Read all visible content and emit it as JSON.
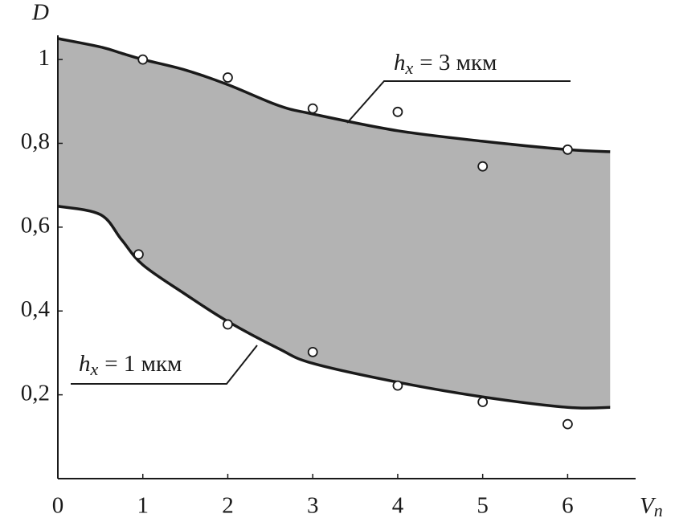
{
  "chart_data": {
    "type": "band",
    "y_label": "D",
    "x_label": "V",
    "x_label_sub": "п",
    "xlim": [
      0,
      6.8
    ],
    "ylim": [
      0,
      1.05
    ],
    "xticks": [
      0,
      1,
      2,
      3,
      4,
      5,
      6
    ],
    "yticks": [
      {
        "value": 0.2,
        "label": "0,2"
      },
      {
        "value": 0.4,
        "label": "0,4"
      },
      {
        "value": 0.6,
        "label": "0,6"
      },
      {
        "value": 0.8,
        "label": "0,8"
      },
      1
    ],
    "fill": "#b3b3b3",
    "line_color": "#1a1a1a",
    "curves": [
      {
        "x": [
          0,
          0.5,
          0.75,
          1,
          1.5,
          2,
          2.6,
          3,
          4,
          5,
          6,
          6.5
        ],
        "values": [
          1.05,
          1.03,
          1.015,
          1.0,
          0.975,
          0.94,
          0.89,
          0.87,
          0.83,
          0.805,
          0.785,
          0.78
        ]
      },
      {
        "x": [
          0,
          0.5,
          0.75,
          1,
          1.5,
          2,
          2.6,
          3,
          4,
          5,
          6,
          6.5
        ],
        "values": [
          0.65,
          0.63,
          0.57,
          0.51,
          0.44,
          0.375,
          0.31,
          0.275,
          0.23,
          0.195,
          0.17,
          0.17
        ]
      }
    ],
    "points": [
      {
        "x": [
          1,
          2,
          3,
          4,
          5,
          6
        ],
        "values": [
          1.0,
          0.957,
          0.883,
          0.875,
          0.745,
          0.785
        ]
      },
      {
        "x": [
          0.95,
          2,
          3,
          4,
          5,
          6
        ],
        "values": [
          0.535,
          0.368,
          0.302,
          0.222,
          0.183,
          0.13
        ]
      }
    ],
    "annotations": [
      {
        "h": "h",
        "sub": "x",
        "rest": "= 3 мкм"
      },
      {
        "h": "h",
        "sub": "x",
        "rest": "= 1 мкм"
      }
    ]
  }
}
